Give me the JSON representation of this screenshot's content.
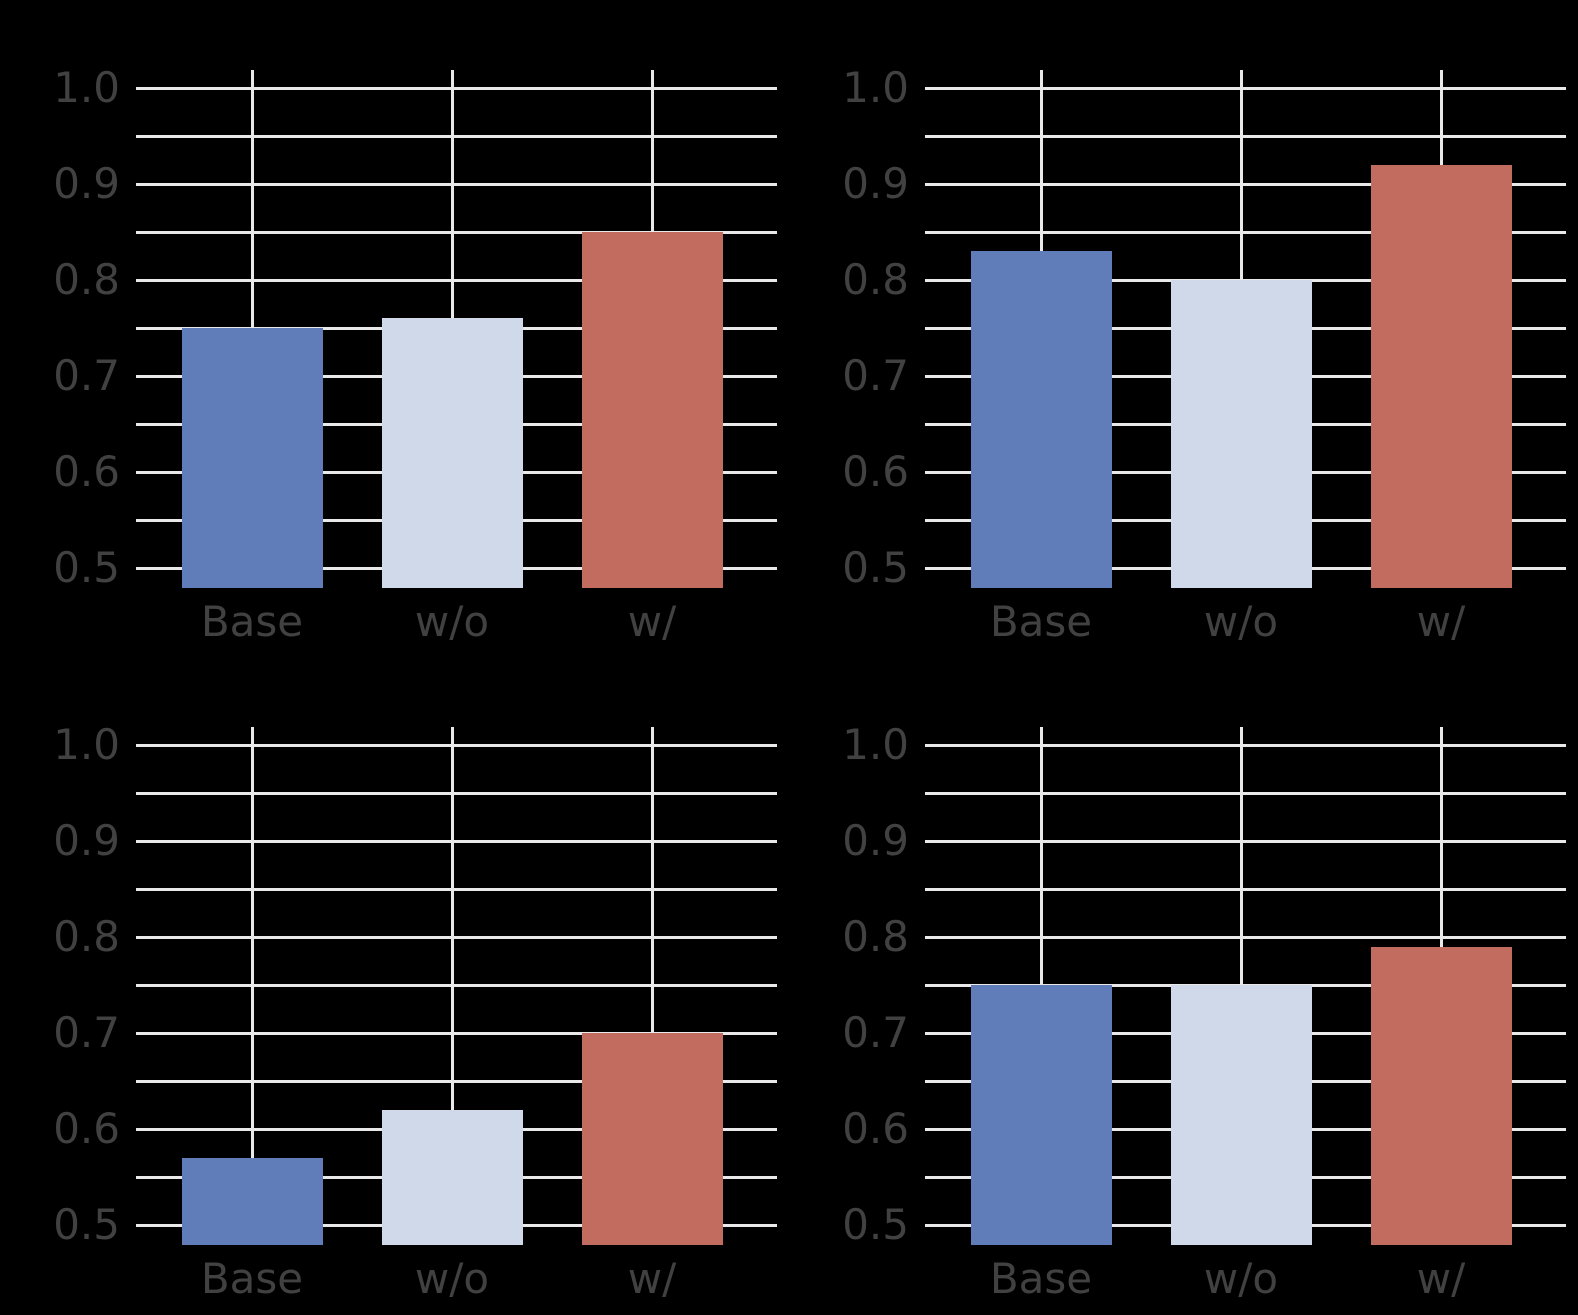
{
  "figure": {
    "background_color": "#000000",
    "grid_color": "#E9E9E9",
    "text_color": "#414141",
    "bar_colors": {
      "Base": "#617DB9",
      "w/o": "#CFD9EA",
      "w/": "#C16C5F"
    },
    "axis": {
      "y_ticks": [
        1.0,
        0.9,
        0.8,
        0.7,
        0.6,
        0.5
      ],
      "y_tick_labels": [
        "1.0",
        "0.9",
        "0.8",
        "0.7",
        "0.6",
        "0.5"
      ],
      "y_minor_step": 0.05,
      "ylim": [
        0.478,
        1.019
      ],
      "grid": true,
      "legend": false
    }
  },
  "chart_data": [
    {
      "type": "bar",
      "position": "top-left",
      "title": "",
      "xlabel": "",
      "ylabel": "",
      "categories": [
        "Base",
        "w/o",
        "w/"
      ],
      "values": [
        0.75,
        0.76,
        0.85
      ],
      "bar_colors": [
        "#617DB9",
        "#CFD9EA",
        "#C16C5F"
      ],
      "ylim": [
        0.478,
        1.019
      ],
      "grid": true,
      "legend": false
    },
    {
      "type": "bar",
      "position": "top-right",
      "title": "",
      "xlabel": "",
      "ylabel": "",
      "categories": [
        "Base",
        "w/o",
        "w/"
      ],
      "values": [
        0.83,
        0.8,
        0.92
      ],
      "bar_colors": [
        "#617DB9",
        "#CFD9EA",
        "#C16C5F"
      ],
      "ylim": [
        0.478,
        1.019
      ],
      "grid": true,
      "legend": false
    },
    {
      "type": "bar",
      "position": "bottom-left",
      "title": "",
      "xlabel": "",
      "ylabel": "",
      "categories": [
        "Base",
        "w/o",
        "w/"
      ],
      "values": [
        0.57,
        0.62,
        0.7
      ],
      "bar_colors": [
        "#617DB9",
        "#CFD9EA",
        "#C16C5F"
      ],
      "ylim": [
        0.478,
        1.019
      ],
      "grid": true,
      "legend": false
    },
    {
      "type": "bar",
      "position": "bottom-right",
      "title": "",
      "xlabel": "",
      "ylabel": "",
      "categories": [
        "Base",
        "w/o",
        "w/"
      ],
      "values": [
        0.75,
        0.75,
        0.79
      ],
      "bar_colors": [
        "#617DB9",
        "#CFD9EA",
        "#C16C5F"
      ],
      "ylim": [
        0.478,
        1.019
      ],
      "grid": true,
      "legend": false
    }
  ]
}
